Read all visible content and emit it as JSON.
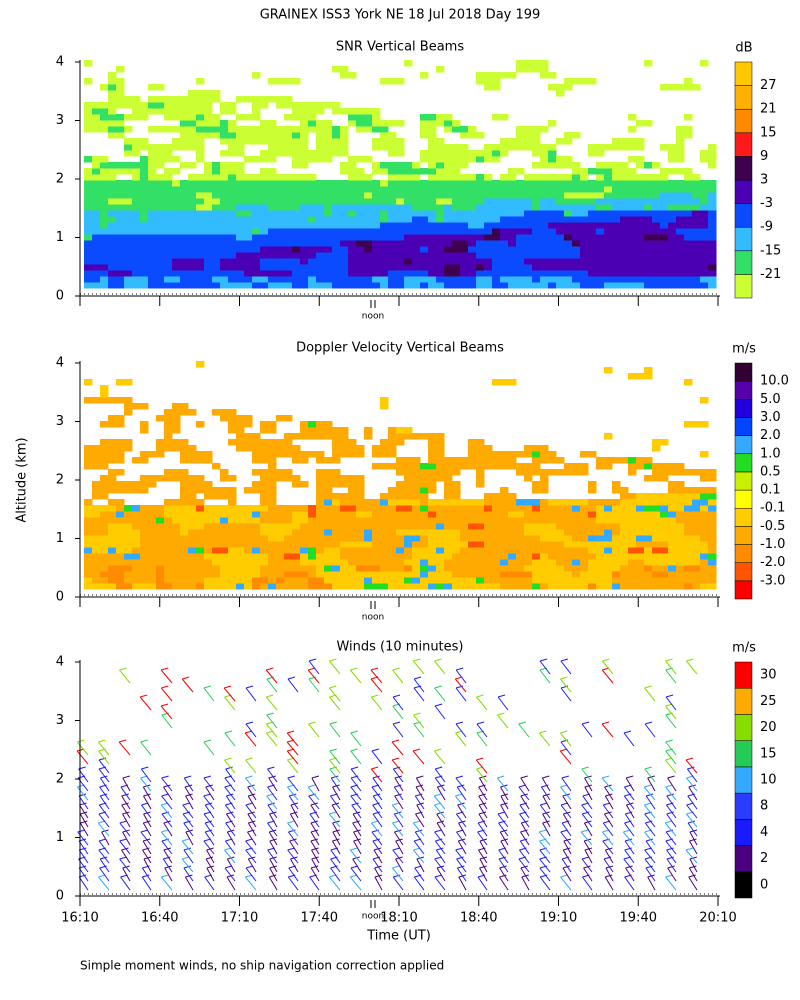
{
  "title": "GRAINEX ISS3 York NE  18 Jul 2018 Day 199",
  "footnote": "Simple moment winds, no ship navigation correction applied",
  "chart_data": [
    {
      "type": "heatmap",
      "title": "SNR Vertical Beams",
      "unit": "dB",
      "noon_label": "noon",
      "ylim": [
        0,
        4
      ],
      "yticks": [
        0,
        1,
        2,
        3,
        4
      ],
      "colorbar": {
        "ticks": [
          -21,
          -15,
          -9,
          -3,
          3,
          9,
          15,
          21,
          27
        ],
        "colors": [
          "#ccff33",
          "#33e066",
          "#33bbff",
          "#0a4bff",
          "#4b00b4",
          "#400050",
          "#ff1a1a",
          "#ff8a00",
          "#ffb000",
          "#ffc800"
        ]
      }
    },
    {
      "type": "heatmap",
      "title": "Doppler Velocity Vertical Beams",
      "unit": "m/s",
      "ylabel": "Altitude (km)",
      "noon_label": "noon",
      "ylim": [
        0,
        4
      ],
      "yticks": [
        0,
        1,
        2,
        3,
        4
      ],
      "colorbar": {
        "ticks": [
          {
            "value": -3,
            "label": "-3.0"
          },
          {
            "value": -2,
            "label": "-2.0"
          },
          {
            "value": -1,
            "label": "-1.0"
          },
          {
            "value": -0.5,
            "label": "-0.5"
          },
          {
            "value": -0.1,
            "label": "-0.1"
          },
          0.1,
          0.5,
          {
            "value": 1,
            "label": "1.0"
          },
          {
            "value": 2,
            "label": "2.0"
          },
          {
            "value": 3,
            "label": "3.0"
          },
          {
            "value": 5,
            "label": "5.0"
          },
          {
            "value": 10,
            "label": "10.0"
          }
        ],
        "colors": [
          "#ff0000",
          "#ff5500",
          "#ff8c00",
          "#ffaa00",
          "#ffcc00",
          "#ffff00",
          "#c8f000",
          "#22dd22",
          "#33aaff",
          "#0044ff",
          "#2200dd",
          "#5500aa",
          "#330033"
        ]
      }
    },
    {
      "type": "barbs",
      "title": "Winds (10 minutes)",
      "unit": "m/s",
      "xlabel": "Time (UT)",
      "noon_label": "noon",
      "xticks": [
        "16:10",
        "16:40",
        "17:10",
        "17:40",
        "18:10",
        "18:40",
        "19:10",
        "19:40",
        "20:10"
      ],
      "ylim": [
        0,
        4
      ],
      "yticks": [
        0,
        1,
        2,
        3,
        4
      ],
      "colorbar": {
        "ticks": [
          0,
          2,
          4,
          8,
          10,
          15,
          20,
          25,
          30
        ],
        "colors": [
          "#000000",
          "#4b0082",
          "#1a1aff",
          "#2a3cff",
          "#33aaff",
          "#22cc55",
          "#88dd00",
          "#ffaa00",
          "#ff0000"
        ]
      }
    }
  ]
}
